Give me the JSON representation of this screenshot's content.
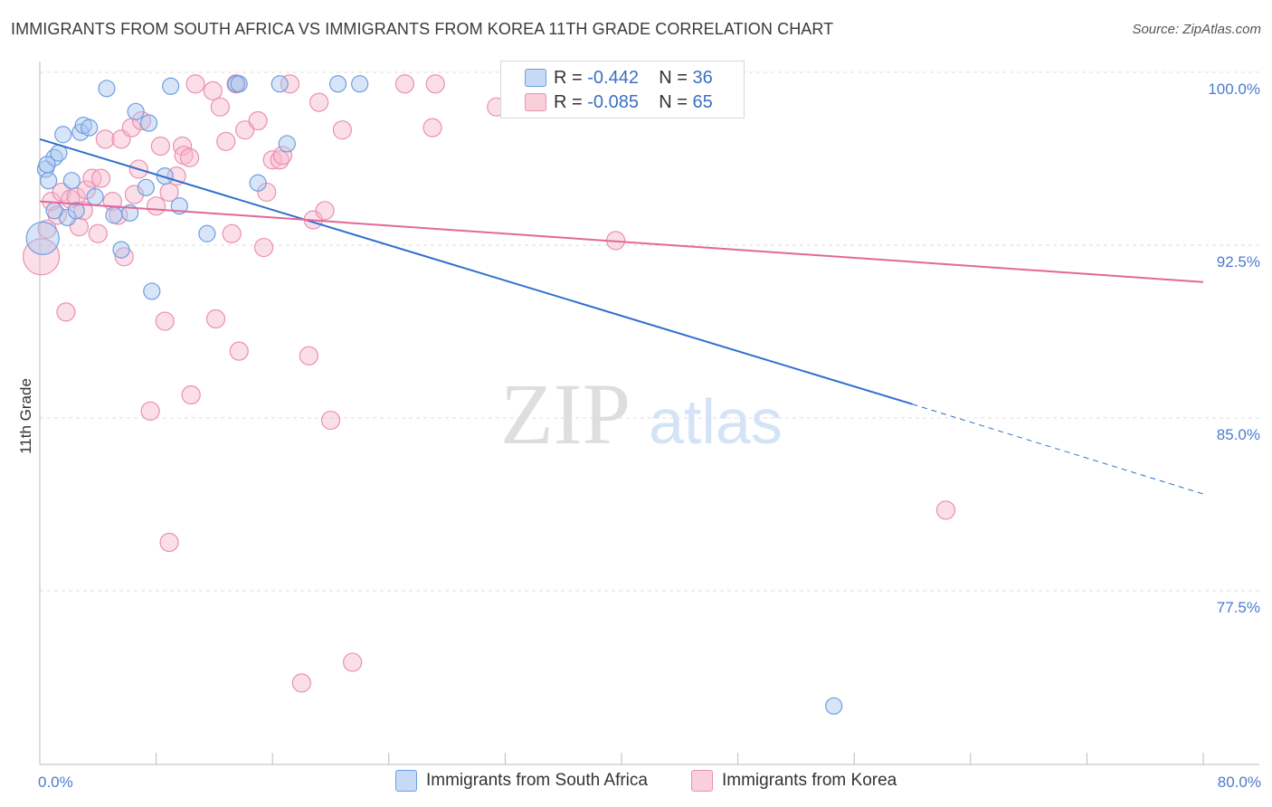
{
  "title": "IMMIGRANTS FROM SOUTH AFRICA VS IMMIGRANTS FROM KOREA 11TH GRADE CORRELATION CHART",
  "source": "Source: ZipAtlas.com",
  "watermark": {
    "zip": "ZIP",
    "atlas": "atlas"
  },
  "legend_stats": [
    {
      "r_label": "R =",
      "r_value": "-0.442",
      "n_label": "N =",
      "n_value": "36"
    },
    {
      "r_label": "R =",
      "r_value": "-0.085",
      "n_label": "N =",
      "n_value": "65"
    }
  ],
  "colors": {
    "blue_fill": "#a8c6f0",
    "blue_stroke": "#6e9ee0",
    "blue_line": "#2f6fd0",
    "pink_fill": "#f7b8cc",
    "pink_stroke": "#ec8fb0",
    "pink_line": "#e2679a",
    "tick_label": "#4a7ccf",
    "grid": "#dddddd"
  },
  "chart_data": {
    "type": "scatter",
    "title": "IMMIGRANTS FROM SOUTH AFRICA VS IMMIGRANTS FROM KOREA 11TH GRADE CORRELATION CHART",
    "xlabel": "",
    "ylabel": "11th Grade",
    "xlim": [
      0,
      80
    ],
    "ylim": [
      70.5,
      101.5
    ],
    "x_tick_labels": [
      {
        "value": 0,
        "label": "0.0%"
      },
      {
        "value": 80,
        "label": "80.0%"
      }
    ],
    "y_tick_labels": [
      {
        "value": 100,
        "label": "100.0%"
      },
      {
        "value": 92.5,
        "label": "92.5%"
      },
      {
        "value": 85,
        "label": "85.0%"
      },
      {
        "value": 77.5,
        "label": "77.5%"
      }
    ],
    "grid": true,
    "legend_position": "bottom",
    "series": [
      {
        "name": "Immigrants from South Africa",
        "color": "#a8c6f0",
        "points": [
          [
            0.2,
            92.8,
            18
          ],
          [
            0.4,
            95.8,
            9
          ],
          [
            0.6,
            95.3,
            9
          ],
          [
            1.0,
            96.3,
            9
          ],
          [
            1.3,
            96.5,
            9
          ],
          [
            1.6,
            97.3,
            9
          ],
          [
            1.9,
            93.7,
            9
          ],
          [
            2.2,
            95.3,
            9
          ],
          [
            2.5,
            94.0,
            9
          ],
          [
            2.8,
            97.4,
            9
          ],
          [
            3.0,
            97.7,
            9
          ],
          [
            3.4,
            97.6,
            9
          ],
          [
            3.8,
            94.6,
            9
          ],
          [
            4.6,
            99.3,
            9
          ],
          [
            5.1,
            93.8,
            9
          ],
          [
            5.6,
            92.3,
            9
          ],
          [
            6.2,
            93.9,
            9
          ],
          [
            6.6,
            98.3,
            9
          ],
          [
            7.5,
            97.8,
            9
          ],
          [
            7.7,
            90.5,
            9
          ],
          [
            8.6,
            95.5,
            9
          ],
          [
            7.3,
            95.0,
            9
          ],
          [
            9.0,
            99.4,
            9
          ],
          [
            9.6,
            94.2,
            9
          ],
          [
            11.5,
            93.0,
            9
          ],
          [
            13.5,
            99.5,
            9
          ],
          [
            13.7,
            99.5,
            9
          ],
          [
            15.0,
            95.2,
            9
          ],
          [
            16.5,
            99.5,
            9
          ],
          [
            17.0,
            96.9,
            9
          ],
          [
            20.5,
            99.5,
            9
          ],
          [
            22.0,
            99.5,
            9
          ],
          [
            1.0,
            94.0,
            9
          ],
          [
            0.5,
            96.0,
            9
          ],
          [
            54.6,
            72.5,
            9
          ],
          [
            35.0,
            99.5,
            9
          ]
        ]
      },
      {
        "name": "Immigrants from Korea",
        "color": "#f7b8cc",
        "points": [
          [
            0.1,
            92.0,
            20
          ],
          [
            0.5,
            93.2,
            10
          ],
          [
            0.8,
            94.4,
            10
          ],
          [
            1.2,
            93.8,
            10
          ],
          [
            1.5,
            94.8,
            10
          ],
          [
            1.8,
            89.6,
            10
          ],
          [
            2.1,
            94.5,
            10
          ],
          [
            2.5,
            94.6,
            10
          ],
          [
            2.7,
            93.3,
            10
          ],
          [
            3.0,
            94.0,
            10
          ],
          [
            3.2,
            94.9,
            10
          ],
          [
            3.6,
            95.4,
            10
          ],
          [
            4.0,
            93.0,
            10
          ],
          [
            4.2,
            95.4,
            10
          ],
          [
            4.5,
            97.1,
            10
          ],
          [
            5.0,
            94.4,
            10
          ],
          [
            5.4,
            93.8,
            10
          ],
          [
            5.6,
            97.1,
            10
          ],
          [
            5.8,
            92.0,
            10
          ],
          [
            6.3,
            97.6,
            10
          ],
          [
            6.5,
            94.7,
            10
          ],
          [
            6.8,
            95.8,
            10
          ],
          [
            7.0,
            97.9,
            10
          ],
          [
            7.6,
            85.3,
            10
          ],
          [
            8.0,
            94.2,
            10
          ],
          [
            8.3,
            96.8,
            10
          ],
          [
            8.6,
            89.2,
            10
          ],
          [
            8.9,
            94.8,
            10
          ],
          [
            8.9,
            79.6,
            10
          ],
          [
            9.4,
            95.5,
            10
          ],
          [
            9.8,
            96.8,
            10
          ],
          [
            9.9,
            96.4,
            10
          ],
          [
            10.3,
            96.3,
            10
          ],
          [
            10.4,
            86.0,
            10
          ],
          [
            10.7,
            99.5,
            10
          ],
          [
            11.9,
            99.2,
            10
          ],
          [
            12.1,
            89.3,
            10
          ],
          [
            12.4,
            98.5,
            10
          ],
          [
            12.8,
            97.0,
            10
          ],
          [
            13.2,
            93.0,
            10
          ],
          [
            13.5,
            99.5,
            10
          ],
          [
            13.7,
            87.9,
            10
          ],
          [
            14.1,
            97.5,
            10
          ],
          [
            15.0,
            97.9,
            10
          ],
          [
            15.4,
            92.4,
            10
          ],
          [
            15.6,
            94.8,
            10
          ],
          [
            16.0,
            96.2,
            10
          ],
          [
            16.5,
            96.2,
            10
          ],
          [
            16.7,
            96.4,
            10
          ],
          [
            17.2,
            99.5,
            10
          ],
          [
            18.0,
            73.5,
            10
          ],
          [
            18.5,
            87.7,
            10
          ],
          [
            18.8,
            93.6,
            10
          ],
          [
            19.2,
            98.7,
            10
          ],
          [
            19.6,
            94.0,
            10
          ],
          [
            20.0,
            84.9,
            10
          ],
          [
            20.8,
            97.5,
            10
          ],
          [
            21.5,
            74.4,
            10
          ],
          [
            25.1,
            99.5,
            10
          ],
          [
            27.0,
            97.6,
            10
          ],
          [
            27.2,
            99.5,
            10
          ],
          [
            31.4,
            98.5,
            10
          ],
          [
            37.5,
            99.5,
            10
          ],
          [
            39.6,
            92.7,
            10
          ],
          [
            62.3,
            81.0,
            10
          ]
        ]
      }
    ],
    "trend_lines": [
      {
        "series": "Immigrants from South Africa",
        "x0": 0,
        "y0": 97.1,
        "x1": 60,
        "y1": 85.6,
        "dashed_to_x": 80,
        "dashed_to_y": 81.7
      },
      {
        "series": "Immigrants from Korea",
        "x0": 0,
        "y0": 94.4,
        "x1": 80,
        "y1": 90.9
      }
    ]
  }
}
